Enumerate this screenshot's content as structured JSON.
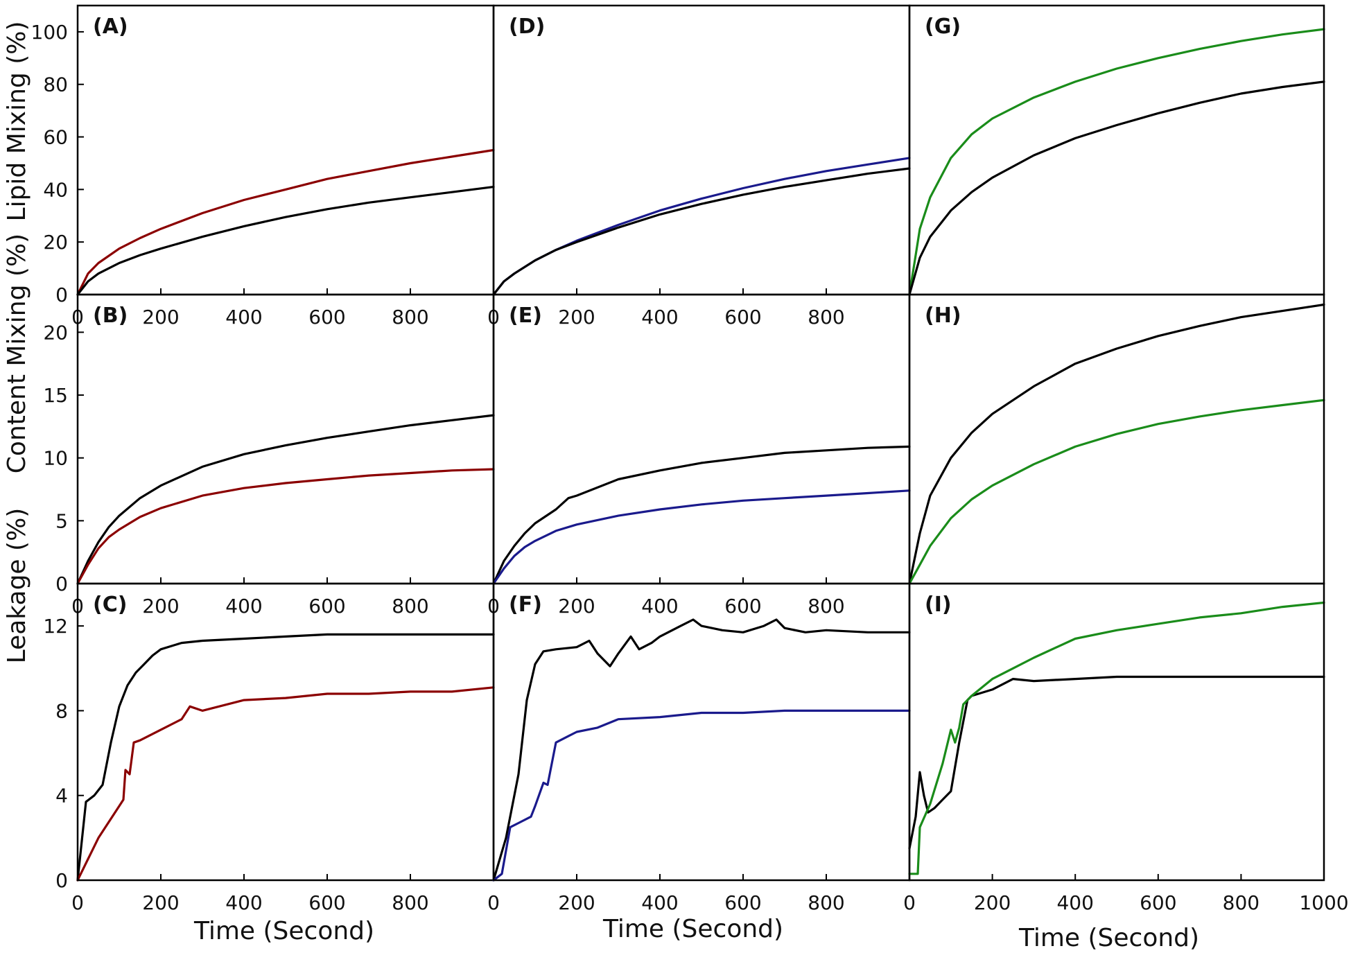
{
  "figure": {
    "row_ylabels": [
      "Lipid Mixing (%)",
      "Content Mixing (%)",
      "Leakage (%)"
    ],
    "column_xlabel": "Time (Second)",
    "colors": {
      "black": "#000000",
      "red": "#8b0000",
      "blue": "#1a1a8c",
      "green": "#1a8c1a",
      "axis": "#000000"
    }
  },
  "chart_data": [
    {
      "id": "A",
      "label": "(A)",
      "type": "line",
      "xlim": [
        0,
        1000
      ],
      "ylim": [
        0,
        110
      ],
      "yticks": [
        0,
        20,
        40,
        60,
        80,
        100
      ],
      "xticks": [
        0,
        200,
        400,
        600,
        800
      ],
      "series": [
        {
          "color": "red",
          "x": [
            0,
            25,
            50,
            100,
            150,
            200,
            300,
            400,
            500,
            600,
            700,
            800,
            900,
            1000
          ],
          "y": [
            0,
            8,
            12,
            17.5,
            21.5,
            25,
            31,
            36,
            40,
            44,
            47,
            50,
            52.5,
            55
          ]
        },
        {
          "color": "black",
          "x": [
            0,
            25,
            50,
            100,
            150,
            200,
            300,
            400,
            500,
            600,
            700,
            800,
            900,
            1000
          ],
          "y": [
            0,
            5,
            8,
            12,
            15,
            17.5,
            22,
            26,
            29.5,
            32.5,
            35,
            37,
            39,
            41
          ]
        }
      ]
    },
    {
      "id": "B",
      "label": "(B)",
      "type": "line",
      "xlim": [
        0,
        1000
      ],
      "ylim": [
        0,
        23
      ],
      "yticks": [
        0,
        5,
        10,
        15,
        20
      ],
      "xticks": [
        0,
        200,
        400,
        600,
        800
      ],
      "series": [
        {
          "color": "black",
          "x": [
            0,
            25,
            50,
            75,
            100,
            150,
            200,
            300,
            400,
            500,
            600,
            700,
            800,
            900,
            1000
          ],
          "y": [
            0,
            1.8,
            3.3,
            4.5,
            5.4,
            6.8,
            7.8,
            9.3,
            10.3,
            11.0,
            11.6,
            12.1,
            12.6,
            13.0,
            13.4
          ]
        },
        {
          "color": "red",
          "x": [
            0,
            25,
            50,
            75,
            100,
            150,
            200,
            300,
            400,
            500,
            600,
            700,
            800,
            900,
            1000
          ],
          "y": [
            0,
            1.5,
            2.8,
            3.7,
            4.3,
            5.3,
            6.0,
            7.0,
            7.6,
            8.0,
            8.3,
            8.6,
            8.8,
            9.0,
            9.1
          ]
        }
      ]
    },
    {
      "id": "C",
      "label": "(C)",
      "type": "line",
      "xlim": [
        0,
        1000
      ],
      "ylim": [
        0,
        14
      ],
      "yticks": [
        0,
        4,
        8,
        12
      ],
      "xticks": [
        0,
        200,
        400,
        600,
        800
      ],
      "series": [
        {
          "color": "black",
          "x": [
            0,
            20,
            40,
            60,
            80,
            100,
            120,
            140,
            160,
            180,
            200,
            250,
            300,
            400,
            500,
            600,
            700,
            800,
            900,
            1000
          ],
          "y": [
            0,
            3.7,
            4.0,
            4.5,
            6.5,
            8.2,
            9.2,
            9.8,
            10.2,
            10.6,
            10.9,
            11.2,
            11.3,
            11.4,
            11.5,
            11.6,
            11.6,
            11.6,
            11.6,
            11.6
          ]
        },
        {
          "color": "red",
          "x": [
            0,
            50,
            100,
            110,
            115,
            125,
            135,
            150,
            200,
            250,
            270,
            300,
            400,
            500,
            600,
            700,
            800,
            900,
            1000
          ],
          "y": [
            0,
            2.0,
            3.5,
            3.8,
            5.2,
            5.0,
            6.5,
            6.6,
            7.1,
            7.6,
            8.2,
            8.0,
            8.5,
            8.6,
            8.8,
            8.8,
            8.9,
            8.9,
            9.1
          ]
        }
      ]
    },
    {
      "id": "D",
      "label": "(D)",
      "type": "line",
      "xlim": [
        0,
        1000
      ],
      "ylim": [
        0,
        110
      ],
      "yticks": [],
      "xticks": [
        0,
        200,
        400,
        600,
        800
      ],
      "series": [
        {
          "color": "blue",
          "x": [
            0,
            25,
            50,
            100,
            150,
            200,
            300,
            400,
            500,
            600,
            700,
            800,
            900,
            1000
          ],
          "y": [
            0,
            5,
            8,
            13,
            17,
            20.5,
            26.5,
            32,
            36.5,
            40.5,
            44,
            47,
            49.5,
            52
          ]
        },
        {
          "color": "black",
          "x": [
            0,
            25,
            50,
            100,
            150,
            200,
            300,
            400,
            500,
            600,
            700,
            800,
            900,
            1000
          ],
          "y": [
            0,
            5,
            8,
            13,
            17,
            20,
            25.5,
            30.5,
            34.5,
            38,
            41,
            43.5,
            46,
            48
          ]
        }
      ]
    },
    {
      "id": "E",
      "label": "(E)",
      "type": "line",
      "xlim": [
        0,
        1000
      ],
      "ylim": [
        0,
        23
      ],
      "yticks": [],
      "xticks": [
        0,
        200,
        400,
        600,
        800
      ],
      "series": [
        {
          "color": "black",
          "x": [
            0,
            25,
            50,
            75,
            100,
            150,
            180,
            200,
            300,
            400,
            500,
            600,
            700,
            800,
            900,
            1000
          ],
          "y": [
            0,
            1.8,
            3.0,
            4.0,
            4.8,
            5.9,
            6.8,
            7.0,
            8.3,
            9.0,
            9.6,
            10.0,
            10.4,
            10.6,
            10.8,
            10.9
          ]
        },
        {
          "color": "blue",
          "x": [
            0,
            25,
            50,
            75,
            100,
            150,
            200,
            300,
            400,
            500,
            600,
            700,
            800,
            900,
            1000
          ],
          "y": [
            0,
            1.2,
            2.2,
            2.9,
            3.4,
            4.2,
            4.7,
            5.4,
            5.9,
            6.3,
            6.6,
            6.8,
            7.0,
            7.2,
            7.4
          ]
        }
      ]
    },
    {
      "id": "F",
      "label": "(F)",
      "type": "line",
      "xlim": [
        0,
        1000
      ],
      "ylim": [
        0,
        14
      ],
      "yticks": [],
      "xticks": [
        0,
        200,
        400,
        600,
        800
      ],
      "series": [
        {
          "color": "black",
          "x": [
            0,
            30,
            60,
            80,
            100,
            120,
            150,
            200,
            230,
            250,
            280,
            300,
            330,
            350,
            380,
            400,
            450,
            480,
            500,
            550,
            600,
            650,
            680,
            700,
            750,
            800,
            900,
            1000
          ],
          "y": [
            0,
            2.0,
            5.0,
            8.5,
            10.2,
            10.8,
            10.9,
            11.0,
            11.3,
            10.7,
            10.1,
            10.7,
            11.5,
            10.9,
            11.2,
            11.5,
            12.0,
            12.3,
            12.0,
            11.8,
            11.7,
            12.0,
            12.3,
            11.9,
            11.7,
            11.8,
            11.7,
            11.7
          ]
        },
        {
          "color": "blue",
          "x": [
            0,
            20,
            40,
            60,
            90,
            100,
            120,
            130,
            150,
            180,
            200,
            250,
            300,
            400,
            500,
            600,
            700,
            800,
            900,
            1000
          ],
          "y": [
            0,
            0.3,
            2.5,
            2.7,
            3.0,
            3.5,
            4.6,
            4.5,
            6.5,
            6.8,
            7.0,
            7.2,
            7.6,
            7.7,
            7.9,
            7.9,
            8.0,
            8.0,
            8.0,
            8.0
          ]
        }
      ]
    },
    {
      "id": "G",
      "label": "(G)",
      "type": "line",
      "xlim": [
        0,
        1000
      ],
      "ylim": [
        0,
        110
      ],
      "yticks": [],
      "xticks": [],
      "series": [
        {
          "color": "green",
          "x": [
            0,
            25,
            50,
            100,
            150,
            200,
            300,
            400,
            500,
            600,
            700,
            800,
            900,
            1000
          ],
          "y": [
            0,
            25,
            37,
            52,
            61,
            67,
            75,
            81,
            86,
            90,
            93.5,
            96.5,
            99,
            101
          ]
        },
        {
          "color": "black",
          "x": [
            0,
            25,
            50,
            100,
            150,
            200,
            300,
            400,
            500,
            600,
            700,
            800,
            900,
            1000
          ],
          "y": [
            0,
            14,
            22,
            32,
            39,
            44.5,
            53,
            59.5,
            64.5,
            69,
            73,
            76.5,
            79,
            81
          ]
        }
      ]
    },
    {
      "id": "H",
      "label": "(H)",
      "type": "line",
      "xlim": [
        0,
        1000
      ],
      "ylim": [
        0,
        23
      ],
      "yticks": [],
      "xticks": [],
      "series": [
        {
          "color": "black",
          "x": [
            0,
            25,
            50,
            100,
            150,
            200,
            300,
            400,
            500,
            600,
            700,
            800,
            900,
            1000
          ],
          "y": [
            0,
            4.0,
            7.0,
            10.0,
            12.0,
            13.5,
            15.7,
            17.5,
            18.7,
            19.7,
            20.5,
            21.2,
            21.7,
            22.2
          ]
        },
        {
          "color": "green",
          "x": [
            0,
            25,
            50,
            100,
            150,
            200,
            300,
            400,
            500,
            600,
            700,
            800,
            900,
            1000
          ],
          "y": [
            0,
            1.5,
            3.0,
            5.2,
            6.7,
            7.8,
            9.5,
            10.9,
            11.9,
            12.7,
            13.3,
            13.8,
            14.2,
            14.6
          ]
        }
      ]
    },
    {
      "id": "I",
      "label": "(I)",
      "type": "line",
      "xlim": [
        0,
        1000
      ],
      "ylim": [
        0,
        14
      ],
      "yticks": [],
      "xticks": [
        0,
        200,
        400,
        600,
        800,
        1000
      ],
      "series": [
        {
          "color": "black",
          "x": [
            0,
            15,
            25,
            35,
            45,
            60,
            80,
            100,
            120,
            140,
            150,
            200,
            250,
            300,
            400,
            500,
            600,
            700,
            800,
            900,
            1000
          ],
          "y": [
            1.5,
            3.0,
            5.1,
            4.0,
            3.2,
            3.4,
            3.8,
            4.2,
            6.5,
            8.5,
            8.7,
            9.0,
            9.5,
            9.4,
            9.5,
            9.6,
            9.6,
            9.6,
            9.6,
            9.6,
            9.6
          ]
        },
        {
          "color": "green",
          "x": [
            0,
            20,
            25,
            50,
            80,
            100,
            110,
            120,
            130,
            150,
            200,
            250,
            300,
            400,
            500,
            600,
            700,
            800,
            900,
            1000
          ],
          "y": [
            0.3,
            0.3,
            2.5,
            3.6,
            5.5,
            7.1,
            6.5,
            7.2,
            8.3,
            8.7,
            9.5,
            10.0,
            10.5,
            11.4,
            11.8,
            12.1,
            12.4,
            12.6,
            12.9,
            13.1
          ]
        }
      ]
    }
  ]
}
